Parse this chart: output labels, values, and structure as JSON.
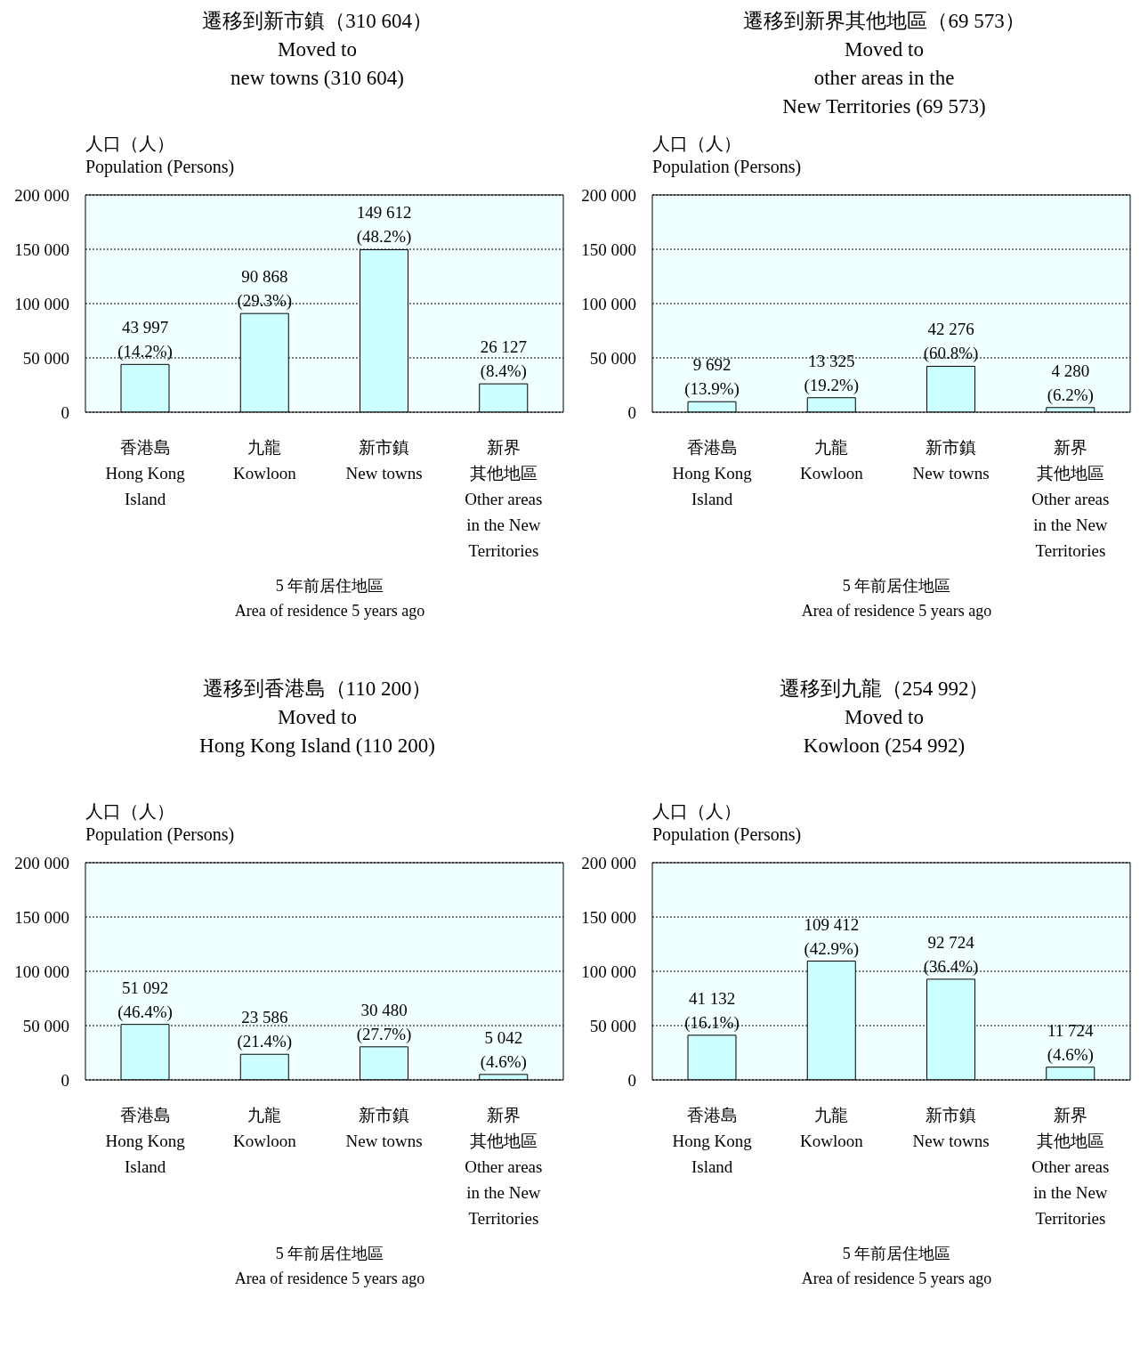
{
  "chart_data": [
    {
      "type": "bar",
      "title": "遷移到新市鎮（310 604）\nMoved to\nnew towns (310 604)",
      "ylabel": "人口（人）\nPopulation (Persons)",
      "xlabel": "5 年前居住地區\nArea of residence 5 years ago",
      "categories": [
        "香港島\nHong Kong\nIsland",
        "九龍\nKowloon",
        "新市鎮\nNew towns",
        "新界其他地區\nOther areas\nin the New\nTerritories"
      ],
      "values": [
        43997,
        90868,
        149612,
        26127
      ],
      "value_labels": [
        "43 997\n(14.2%)",
        "90 868\n(29.3%)",
        "149 612\n(48.2%)",
        "26 127\n(8.4%)"
      ],
      "color": "#ccffff",
      "ylim": [
        0,
        200000
      ],
      "yticks": [
        {
          "value": 0,
          "label": "0"
        },
        {
          "value": 50000,
          "label": "50 000"
        },
        {
          "value": 100000,
          "label": "100 000"
        },
        {
          "value": 150000,
          "label": "150 000"
        },
        {
          "value": 200000,
          "label": "200 000"
        }
      ],
      "grid": "y",
      "line_style": "dotted"
    },
    {
      "type": "bar",
      "title": "遷移到新界其他地區（69 573）\nMoved to\nother areas in the\nNew Territories (69 573)",
      "ylabel": "人口（人）\nPopulation (Persons)",
      "xlabel": "5 年前居住地區\nArea of residence 5 years ago",
      "categories": [
        "香港島\nHong Kong\nIsland",
        "九龍\nKowloon",
        "新市鎮\nNew towns",
        "新界其他地區\nOther areas\nin the New\nTerritories"
      ],
      "values": [
        9692,
        13325,
        42276,
        4280
      ],
      "value_labels": [
        "9 692\n(13.9%)",
        "13 325\n(19.2%)",
        "42 276\n(60.8%)",
        "4 280\n(6.2%)"
      ],
      "color": "#ccffff",
      "ylim": [
        0,
        200000
      ],
      "yticks": [
        {
          "value": 0,
          "label": "0"
        },
        {
          "value": 50000,
          "label": "50 000"
        },
        {
          "value": 100000,
          "label": "100 000"
        },
        {
          "value": 150000,
          "label": "150 000"
        },
        {
          "value": 200000,
          "label": "200 000"
        }
      ],
      "grid": "y",
      "line_style": "dotted"
    },
    {
      "type": "bar",
      "title": "遷移到香港島（110 200）\nMoved to\nHong Kong Island (110 200)",
      "ylabel": "人口（人）\nPopulation (Persons)",
      "xlabel": "5 年前居住地區\nArea of residence 5 years ago",
      "categories": [
        "香港島\nHong Kong\nIsland",
        "九龍\nKowloon",
        "新市鎮\nNew towns",
        "新界其他地區\nOther areas\nin the New\nTerritories"
      ],
      "values": [
        51092,
        23586,
        30480,
        5042
      ],
      "value_labels": [
        "51 092\n(46.4%)",
        "23 586\n(21.4%)",
        "30 480\n(27.7%)",
        "5 042\n(4.6%)"
      ],
      "color": "#ccffff",
      "ylim": [
        0,
        200000
      ],
      "yticks": [
        {
          "value": 0,
          "label": "0"
        },
        {
          "value": 50000,
          "label": "50 000"
        },
        {
          "value": 100000,
          "label": "100 000"
        },
        {
          "value": 150000,
          "label": "150 000"
        },
        {
          "value": 200000,
          "label": "200 000"
        }
      ],
      "grid": "y",
      "line_style": "dotted"
    },
    {
      "type": "bar",
      "title": "遷移到九龍（254 992）\nMoved to\nKowloon (254 992)",
      "ylabel": "人口（人）\nPopulation (Persons)",
      "xlabel": "5 年前居住地區\nArea of residence 5 years ago",
      "categories": [
        "香港島\nHong Kong\nIsland",
        "九龍\nKowloon",
        "新市鎮\nNew towns",
        "新界其他地區\nOther areas\nin the New\nTerritories"
      ],
      "values": [
        41132,
        109412,
        92724,
        11724
      ],
      "value_labels": [
        "41 132\n(16.1%)",
        "109 412\n(42.9%)",
        "92 724\n(36.4%)",
        "11 724\n(4.6%)"
      ],
      "color": "#ccffff",
      "ylim": [
        0,
        200000
      ],
      "yticks": [
        {
          "value": 0,
          "label": "0"
        },
        {
          "value": 50000,
          "label": "50 000"
        },
        {
          "value": 100000,
          "label": "100 000"
        },
        {
          "value": 150000,
          "label": "150 000"
        },
        {
          "value": 200000,
          "label": "200 000"
        }
      ],
      "grid": "y",
      "line_style": "dotted"
    }
  ]
}
